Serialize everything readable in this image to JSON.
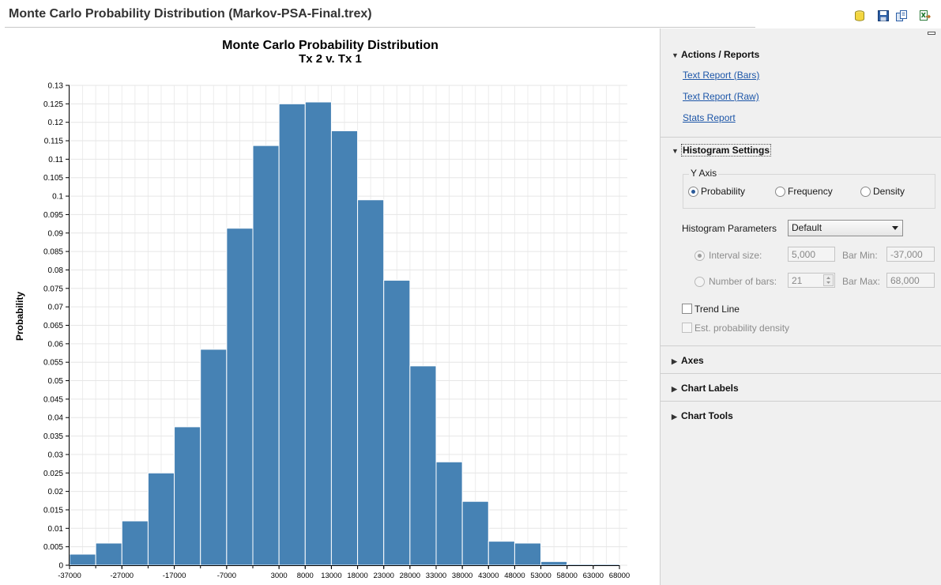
{
  "window": {
    "title": "Monte Carlo Probability Distribution (Markov-PSA-Final.trex)"
  },
  "toolbar": {
    "icons": [
      "database-icon",
      "save-icon",
      "copy-icon",
      "export-excel-icon"
    ]
  },
  "chart_data": {
    "type": "bar",
    "title": "Monte Carlo Probability Distribution",
    "subtitle": "Tx 2 v. Tx 1",
    "xlabel": "",
    "ylabel": "Probability",
    "categories": [
      "-37000 to -32000",
      "-32000 to -27000",
      "-27000 to -22000",
      "-22000 to -17000",
      "-17000 to -12000",
      "-12000 to -7000",
      "-7000 to -2000",
      "-2000 to 3000",
      "3000 to 8000",
      "8000 to 13000",
      "13000 to 18000",
      "18000 to 23000",
      "23000 to 28000",
      "28000 to 33000",
      "33000 to 38000",
      "38000 to 43000",
      "43000 to 48000",
      "48000 to 53000",
      "53000 to 58000",
      "58000 to 63000",
      "63000 to 68000"
    ],
    "bin_edges": [
      -37000,
      -32000,
      -27000,
      -22000,
      -17000,
      -12000,
      -7000,
      -2000,
      3000,
      8000,
      13000,
      18000,
      23000,
      28000,
      33000,
      38000,
      43000,
      48000,
      53000,
      58000,
      63000,
      68000
    ],
    "values": [
      0.003,
      0.006,
      0.012,
      0.025,
      0.0375,
      0.0585,
      0.0913,
      0.1137,
      0.125,
      0.1255,
      0.1177,
      0.099,
      0.0772,
      0.054,
      0.028,
      0.0173,
      0.0065,
      0.006,
      0.001,
      0.0003,
      0.0003
    ],
    "xlim": [
      -37000,
      68000
    ],
    "ylim": [
      0,
      0.13
    ],
    "yticks": [
      "0",
      "0.005",
      "0.01",
      "0.015",
      "0.02",
      "0.025",
      "0.03",
      "0.035",
      "0.04",
      "0.045",
      "0.05",
      "0.055",
      "0.06",
      "0.065",
      "0.07",
      "0.075",
      "0.08",
      "0.085",
      "0.09",
      "0.095",
      "0.1",
      "0.105",
      "0.11",
      "0.115",
      "0.12",
      "0.125",
      "0.13"
    ],
    "xticks": [
      "-37000",
      "-27000",
      "-17000",
      "-7000",
      "3000",
      "8000",
      "13000",
      "18000",
      "23000",
      "28000",
      "33000",
      "38000",
      "43000",
      "48000",
      "53000",
      "58000",
      "63000",
      "68000"
    ],
    "grid": true,
    "bar_color": "#4682b4"
  },
  "panel": {
    "actions": {
      "heading": "Actions / Reports",
      "links": [
        "Text Report (Bars)",
        "Text Report (Raw)",
        "Stats Report"
      ]
    },
    "histogram": {
      "heading": "Histogram Settings",
      "yaxis_group": "Y Axis",
      "yaxis_options": [
        "Probability",
        "Frequency",
        "Density"
      ],
      "yaxis_selected": "Probability",
      "params_label": "Histogram Parameters",
      "params_value": "Default",
      "interval_label": "Interval size:",
      "interval_value": "5,000",
      "bar_min_label": "Bar Min:",
      "bar_min_value": "-37,000",
      "num_bars_label": "Number of bars:",
      "num_bars_value": "21",
      "bar_max_label": "Bar Max:",
      "bar_max_value": "68,000",
      "trend_line_label": "Trend Line",
      "est_density_label": "Est. probability density"
    },
    "collapsed_sections": [
      "Axes",
      "Chart Labels",
      "Chart Tools"
    ]
  }
}
